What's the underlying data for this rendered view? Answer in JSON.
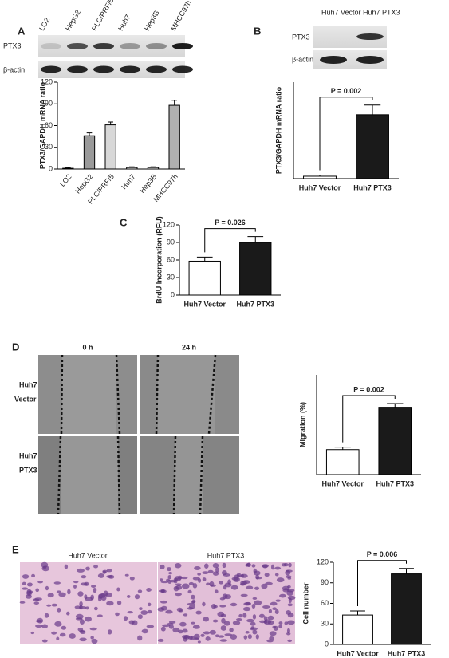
{
  "panels": {
    "A": {
      "label": "A",
      "lanes": [
        "LO2",
        "HepG2",
        "PLC/PRF/5",
        "Huh7",
        "Hep3B",
        "MHCC97h"
      ],
      "rows": [
        "PTX3",
        "β-actin"
      ]
    },
    "B": {
      "label": "B",
      "lanes": [
        "Huh7 Vector",
        "Huh7 PTX3"
      ],
      "rows": [
        "PTX3",
        "β-actin"
      ]
    },
    "C": {
      "label": "C"
    },
    "D": {
      "label": "D",
      "columns": [
        "0 h",
        "24 h"
      ],
      "rows": [
        [
          "Huh7",
          "Vector"
        ],
        [
          "Huh7",
          "PTX3"
        ]
      ]
    },
    "E": {
      "label": "E",
      "columns": [
        "Huh7 Vector",
        "Huh7 PTX3"
      ]
    }
  },
  "chart_data": [
    {
      "type": "bar",
      "categories": [
        "LO2",
        "HepG2",
        "PLC/PRF/5",
        "Huh7",
        "Hep3B",
        "MHCC97h"
      ],
      "values": [
        1,
        46,
        61,
        2,
        2,
        88
      ],
      "errors": [
        1,
        4,
        4,
        1,
        1,
        7
      ],
      "colors": [
        "#ffffff",
        "#9a9a9a",
        "#d8d8d8",
        "#ffffff",
        "#ffffff",
        "#b0b0b0"
      ],
      "ylabel": "PTX3/GAPDH mRNA ratio",
      "ylim": [
        0,
        120
      ],
      "yticks": [
        0,
        30,
        60,
        90,
        120
      ]
    },
    {
      "type": "bar",
      "categories": [
        "Huh7 Vector",
        "Huh7 PTX3"
      ],
      "values": [
        2,
        53
      ],
      "errors": [
        1,
        8
      ],
      "colors": [
        "#ffffff",
        "#1a1a1a"
      ],
      "ylabel": "PTX3/GAPDH mRNA ratio",
      "ylim": [
        0,
        80
      ],
      "annotation": "P = 0.002"
    },
    {
      "type": "bar",
      "categories": [
        "Huh7 Vector",
        "Huh7 PTX3"
      ],
      "values": [
        58,
        90
      ],
      "errors": [
        7,
        10
      ],
      "colors": [
        "#ffffff",
        "#1a1a1a"
      ],
      "ylabel": "BrdU Incorporation (RFU)",
      "ylim": [
        0,
        120
      ],
      "yticks": [
        0,
        30,
        60,
        90,
        120
      ],
      "annotation": "P = 0.026"
    },
    {
      "type": "bar",
      "categories": [
        "Huh7 Vector",
        "Huh7 PTX3"
      ],
      "values": [
        20,
        54
      ],
      "errors": [
        2,
        3
      ],
      "colors": [
        "#ffffff",
        "#1a1a1a"
      ],
      "ylabel": "Migration (%)",
      "ylim": [
        0,
        80
      ],
      "annotation": "P = 0.002"
    },
    {
      "type": "bar",
      "categories": [
        "Huh7 Vector",
        "Huh7 PTX3"
      ],
      "values": [
        43,
        103
      ],
      "errors": [
        6,
        8
      ],
      "colors": [
        "#ffffff",
        "#1a1a1a"
      ],
      "ylabel": "Cell number",
      "ylim": [
        0,
        120
      ],
      "yticks": [
        0,
        30,
        60,
        90,
        120
      ],
      "annotation": "P = 0.006"
    }
  ]
}
